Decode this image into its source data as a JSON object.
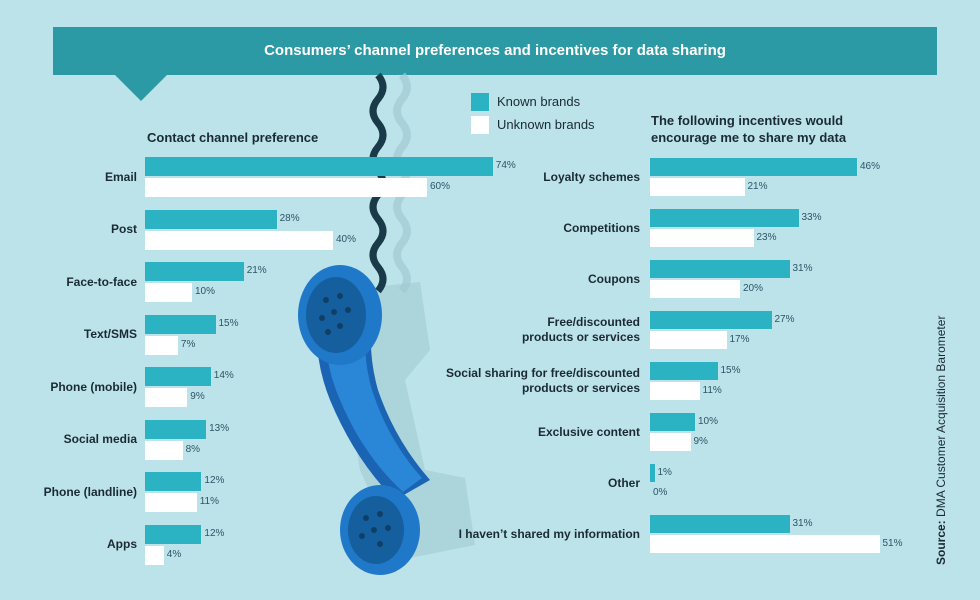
{
  "title": "Consumers’ channel preferences and incentives for data sharing",
  "legend": {
    "known": "Known brands",
    "unknown": "Unknown brands"
  },
  "colors": {
    "banner": "#2b9aa5",
    "known": "#2bb3c3",
    "unknown": "#ffffff",
    "background": "#bde3ea",
    "phone": "#1f78c8"
  },
  "source": {
    "prefix": "Source:",
    "text": "DMA Customer Acquisition Barometer"
  },
  "chart_data": [
    {
      "type": "bar",
      "orientation": "horizontal",
      "title": "Contact channel preference",
      "categories": [
        "Email",
        "Post",
        "Face-to-face",
        "Text/SMS",
        "Phone (mobile)",
        "Social media",
        "Phone (landline)",
        "Apps"
      ],
      "series": [
        {
          "name": "Known brands",
          "values": [
            74,
            28,
            21,
            15,
            14,
            13,
            12,
            12
          ]
        },
        {
          "name": "Unknown brands",
          "values": [
            60,
            40,
            10,
            7,
            9,
            8,
            11,
            4
          ]
        }
      ],
      "value_suffix": "%"
    },
    {
      "type": "bar",
      "orientation": "horizontal",
      "title": "The following incentives would encourage me to share my data",
      "title_lines": [
        "The following incentives would",
        "encourage me to share my data"
      ],
      "categories": [
        "Loyalty schemes",
        "Competitions",
        "Coupons",
        "Free/discounted products or services",
        "Social sharing for free/discounted products or services",
        "Exclusive content",
        "Other",
        "I haven’t shared my information"
      ],
      "category_lines": [
        [
          "Loyalty schemes"
        ],
        [
          "Competitions"
        ],
        [
          "Coupons"
        ],
        [
          "Free/discounted",
          "products or services"
        ],
        [
          "Social sharing for free/discounted",
          "products or services"
        ],
        [
          "Exclusive content"
        ],
        [
          "Other"
        ],
        [
          "I haven’t shared my information"
        ]
      ],
      "series": [
        {
          "name": "Known brands",
          "values": [
            46,
            33,
            31,
            27,
            15,
            10,
            1,
            31
          ]
        },
        {
          "name": "Unknown brands",
          "values": [
            21,
            23,
            20,
            17,
            11,
            9,
            0,
            51
          ]
        }
      ],
      "value_suffix": "%"
    }
  ]
}
